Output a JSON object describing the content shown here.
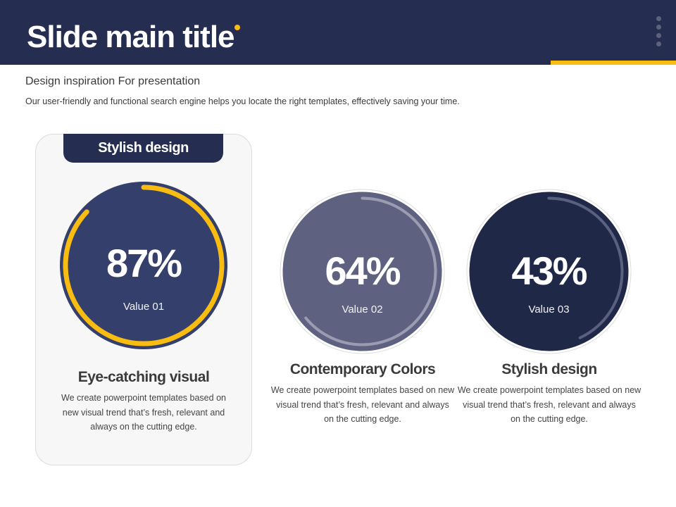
{
  "header": {
    "title": "Slide main title",
    "accent_color": "#f9bc10",
    "background_color": "#252e50"
  },
  "intro": {
    "subtitle": "Design inspiration For presentation",
    "description": "Our user-friendly and functional search engine helps you locate the right templates, effectively saving your time."
  },
  "card": {
    "tab_label": "Stylish design"
  },
  "items": [
    {
      "percent_text": "87%",
      "percent_value": 87,
      "value_label": "Value 01",
      "title": "Eye-catching visual",
      "text": "We create powerpoint templates based on new visual trend that’s fresh, relevant and always on the cutting edge.",
      "fill_color": "#353f6c",
      "ring_color": "#f9bc10"
    },
    {
      "percent_text": "64%",
      "percent_value": 64,
      "value_label": "Value 02",
      "title": "Contemporary Colors",
      "text": "We create powerpoint templates based on new visual trend that’s fresh, relevant and always on the cutting edge.",
      "fill_color": "#5e6280",
      "ring_color": "#9a9db2"
    },
    {
      "percent_text": "43%",
      "percent_value": 43,
      "value_label": "Value 03",
      "title": "Stylish design",
      "text": "We create powerpoint templates based on new visual trend that’s fresh, relevant and always on the cutting edge.",
      "fill_color": "#202848",
      "ring_color": "#5a6080"
    }
  ]
}
